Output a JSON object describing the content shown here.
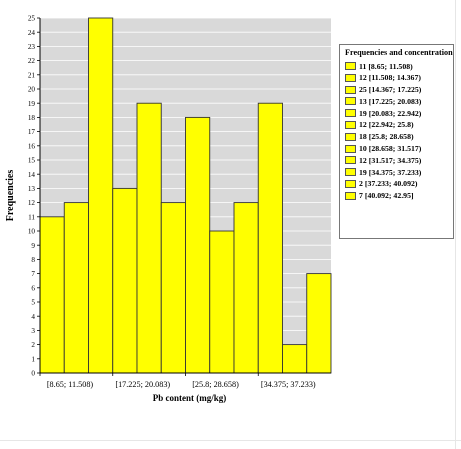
{
  "chart_data": {
    "type": "bar",
    "xlabel": "Pb content (mg/kg)",
    "ylabel": "Frequencies",
    "ylim": [
      0,
      25
    ],
    "yticks": [
      0,
      1,
      2,
      3,
      4,
      5,
      6,
      7,
      8,
      9,
      10,
      11,
      12,
      13,
      14,
      15,
      16,
      17,
      18,
      19,
      20,
      21,
      22,
      23,
      24,
      25
    ],
    "grid": true,
    "legend_position": "right",
    "categories": [
      "[8.65; 11.508)",
      "[11.508; 14.367)",
      "[14.367; 17.225)",
      "[17.225; 20.083)",
      "[20.083; 22.942)",
      "[22.942; 25.8)",
      "[25.8; 28.658)",
      "[28.658; 31.517)",
      "[31.517; 34.375)",
      "[34.375; 37.233)",
      "[37.233; 40.092)",
      "[40.092; 42.95]"
    ],
    "values": [
      11,
      12,
      25,
      13,
      19,
      12,
      18,
      10,
      12,
      19,
      2,
      7
    ],
    "x_tick_labels": [
      "[8.65; 11.508)",
      "[17.225; 20.083)",
      "[25.8; 28.658)",
      "[34.375; 37.233)"
    ],
    "x_tick_indices": [
      0,
      3,
      6,
      9
    ],
    "bar_color": "#ffff00",
    "plot_background": "#d9d9d9",
    "legend": {
      "title": "Frequencies and concentration",
      "entries": [
        "11 [8.65; 11.508)",
        "12 [11.508; 14.367)",
        "25 [14.367; 17.225)",
        "13 [17.225; 20.083)",
        "19 [20.083; 22.942)",
        "12 [22.942; 25.8)",
        "18 [25.8; 28.658)",
        "10 [28.658; 31.517)",
        "12 [31.517; 34.375)",
        "19 [34.375; 37.233)",
        "2 [37.233; 40.092)",
        "7 [40.092; 42.95]"
      ]
    }
  }
}
